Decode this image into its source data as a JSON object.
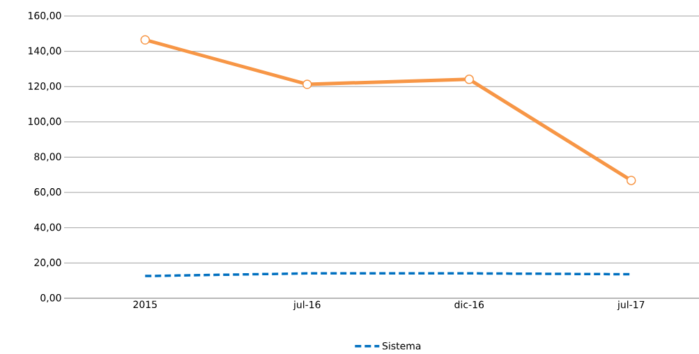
{
  "chart_data": {
    "type": "line",
    "categories": [
      "2015",
      "jul-16",
      "dic-16",
      "jul-17"
    ],
    "series": [
      {
        "color": "#f79646",
        "values": [
          146.5,
          121.3,
          124.1,
          66.8
        ],
        "marker": "circle",
        "line_style": "solid"
      },
      {
        "name": "Sistema",
        "color": "#0070c0",
        "values": [
          12.6,
          14.1,
          14.1,
          13.6
        ],
        "marker": "none",
        "line_style": "dashed"
      }
    ],
    "ylim": [
      0,
      160
    ],
    "yticks": [
      {
        "value": 0,
        "label": "0,00"
      },
      {
        "value": 20,
        "label": "20,00"
      },
      {
        "value": 40,
        "label": "40,00"
      },
      {
        "value": 60,
        "label": "60,00"
      },
      {
        "value": 80,
        "label": "80,00"
      },
      {
        "value": 100,
        "label": "100,00"
      },
      {
        "value": 120,
        "label": "120,00"
      },
      {
        "value": 140,
        "label": "140,00"
      },
      {
        "value": 160,
        "label": "160,00"
      }
    ],
    "grid": "y",
    "legend": "bottom"
  }
}
